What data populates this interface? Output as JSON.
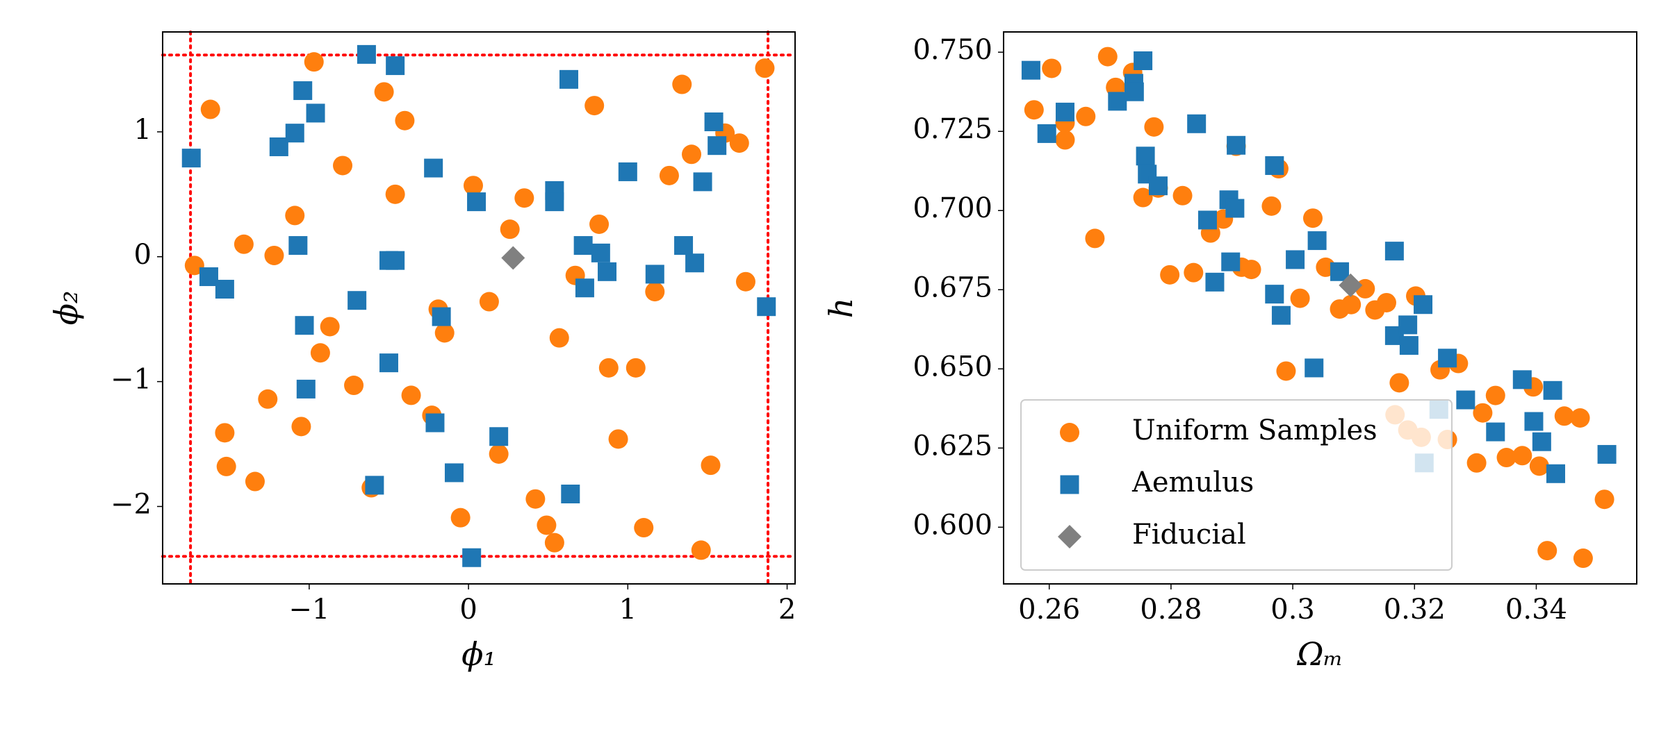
{
  "chart_data": [
    {
      "type": "scatter",
      "xlabel": "ϕ₁",
      "ylabel": "ϕ₂",
      "xlim": [
        -1.92,
        2.05
      ],
      "ylim": [
        -2.62,
        1.8
      ],
      "xticks": [
        {
          "value": -1,
          "label": "−1"
        },
        0,
        1,
        2
      ],
      "yticks": [
        {
          "value": -2,
          "label": "−2"
        },
        {
          "value": -1,
          "label": "−1"
        },
        0,
        1
      ],
      "vlines": [
        -1.745,
        1.88
      ],
      "hlines": [
        1.615,
        -2.4
      ],
      "line_color": "#ff0000",
      "series": [
        {
          "color": "#ff7f0e",
          "marker": "circle",
          "x": [
            -1.72,
            -1.62,
            -1.53,
            -1.52,
            -1.41,
            -1.34,
            -1.26,
            -1.22,
            -1.09,
            -1.05,
            -0.97,
            -0.93,
            -0.87,
            -0.79,
            -0.72,
            -0.61,
            -0.53,
            -0.46,
            -0.4,
            -0.36,
            -0.23,
            -0.19,
            -0.15,
            -0.05,
            0.03,
            0.13,
            0.19,
            0.26,
            0.35,
            0.42,
            0.49,
            0.54,
            0.57,
            0.67,
            0.79,
            0.82,
            0.88,
            0.94,
            1.05,
            1.1,
            1.17,
            1.26,
            1.34,
            1.4,
            1.46,
            1.52,
            1.61,
            1.7,
            1.74,
            1.86
          ],
          "y": [
            -0.07,
            1.18,
            -1.41,
            -1.68,
            0.1,
            -1.8,
            -1.14,
            0.01,
            0.33,
            -1.36,
            1.56,
            -0.77,
            -0.56,
            0.73,
            -1.03,
            -1.85,
            1.32,
            0.5,
            1.09,
            -1.11,
            -1.27,
            -0.42,
            -0.61,
            -2.09,
            0.57,
            -0.36,
            -1.58,
            0.22,
            0.47,
            -1.94,
            -2.15,
            -2.29,
            -0.65,
            -0.15,
            1.21,
            0.26,
            -0.89,
            -1.46,
            -0.89,
            -2.17,
            -0.28,
            0.65,
            1.38,
            0.82,
            -2.35,
            -1.67,
            0.99,
            0.91,
            -0.2,
            1.51
          ]
        },
        {
          "color": "#1f77b4",
          "marker": "square",
          "x": [
            -1.74,
            -1.63,
            -1.53,
            -1.19,
            -1.09,
            -1.07,
            -1.04,
            -1.03,
            -1.02,
            -0.96,
            -0.7,
            -0.64,
            -0.59,
            -0.5,
            -0.5,
            -0.46,
            -0.46,
            -0.22,
            -0.21,
            -0.17,
            -0.09,
            0.02,
            0.05,
            0.19,
            0.54,
            0.54,
            0.63,
            0.64,
            0.72,
            0.73,
            0.83,
            0.87,
            1.0,
            1.17,
            1.35,
            1.42,
            1.47,
            1.54,
            1.56,
            1.87
          ],
          "y": [
            0.79,
            -0.16,
            -0.26,
            0.88,
            0.99,
            0.09,
            1.33,
            -0.55,
            -1.06,
            1.15,
            -0.35,
            1.62,
            -1.83,
            -0.85,
            -0.03,
            1.53,
            -0.03,
            0.71,
            -1.33,
            -0.48,
            -1.73,
            -2.41,
            0.44,
            -1.44,
            0.53,
            0.44,
            1.42,
            -1.9,
            0.09,
            -0.25,
            0.03,
            -0.12,
            0.68,
            -0.14,
            0.09,
            -0.05,
            0.6,
            1.08,
            0.89,
            -0.4
          ]
        },
        {
          "color": "#808080",
          "marker": "diamond",
          "x": [
            0.28
          ],
          "y": [
            -0.01
          ]
        }
      ]
    },
    {
      "type": "scatter",
      "xlabel": "Ωₘ",
      "ylabel": "h",
      "xlim": [
        0.2525,
        0.3565
      ],
      "ylim": [
        0.5821,
        0.7564
      ],
      "xticks": [
        0.26,
        0.28,
        0.3,
        0.32,
        0.34
      ],
      "yticks": [
        {
          "value": 0.6,
          "label": "0.600"
        },
        0.625,
        {
          "value": 0.65,
          "label": "0.650"
        },
        0.675,
        {
          "value": 0.7,
          "label": "0.700"
        },
        0.725,
        {
          "value": 0.75,
          "label": "0.750"
        }
      ],
      "legend": "lower left",
      "series": [
        {
          "name": "Uniform Samples",
          "color": "#ff7f0e",
          "marker": "circle",
          "x": [
            0.2575,
            0.2604,
            0.2626,
            0.2626,
            0.266,
            0.2675,
            0.2696,
            0.2709,
            0.2737,
            0.2754,
            0.2772,
            0.2779,
            0.2798,
            0.2819,
            0.2837,
            0.2865,
            0.2886,
            0.2907,
            0.2916,
            0.2932,
            0.2965,
            0.2977,
            0.2989,
            0.3012,
            0.3033,
            0.3054,
            0.3077,
            0.3096,
            0.3119,
            0.3135,
            0.3154,
            0.3175,
            0.3168,
            0.3189,
            0.3202,
            0.3211,
            0.3242,
            0.3254,
            0.3272,
            0.3302,
            0.3312,
            0.3333,
            0.3351,
            0.3377,
            0.3395,
            0.3405,
            0.3418,
            0.3446,
            0.3472,
            0.3477,
            0.3512
          ],
          "y": [
            0.7318,
            0.7449,
            0.7277,
            0.7223,
            0.7297,
            0.6912,
            0.7486,
            0.7389,
            0.7436,
            0.7041,
            0.7264,
            0.7071,
            0.6797,
            0.7047,
            0.6804,
            0.6929,
            0.6973,
            0.7203,
            0.6821,
            0.6814,
            0.7014,
            0.7132,
            0.6493,
            0.6723,
            0.6976,
            0.6821,
            0.6689,
            0.6703,
            0.6753,
            0.6686,
            0.6709,
            0.6456,
            0.6355,
            0.6307,
            0.673,
            0.6284,
            0.6497,
            0.6277,
            0.6517,
            0.6203,
            0.6361,
            0.6416,
            0.622,
            0.6226,
            0.6443,
            0.6193,
            0.5926,
            0.6351,
            0.6345,
            0.5902,
            0.6088
          ]
        },
        {
          "name": "Aemulus",
          "color": "#1f77b4",
          "marker": "square",
          "x": [
            0.257,
            0.2596,
            0.2626,
            0.2712,
            0.2739,
            0.274,
            0.2754,
            0.2758,
            0.2761,
            0.2779,
            0.2842,
            0.286,
            0.2872,
            0.2895,
            0.2898,
            0.2905,
            0.2907,
            0.297,
            0.297,
            0.2981,
            0.3004,
            0.304,
            0.3035,
            0.3077,
            0.3167,
            0.3167,
            0.3189,
            0.3191,
            0.3214,
            0.3254,
            0.3284,
            0.3333,
            0.3377,
            0.3396,
            0.3409,
            0.3427,
            0.3432,
            0.3516,
            0.324,
            0.3216
          ],
          "y": [
            0.7443,
            0.7243,
            0.7311,
            0.7345,
            0.7402,
            0.7375,
            0.7473,
            0.7172,
            0.7115,
            0.7078,
            0.7274,
            0.697,
            0.6774,
            0.7034,
            0.6838,
            0.7007,
            0.7206,
            0.7142,
            0.6736,
            0.6669,
            0.6845,
            0.6905,
            0.6503,
            0.6807,
            0.6872,
            0.6605,
            0.6639,
            0.6574,
            0.6703,
            0.6534,
            0.6402,
            0.6301,
            0.6466,
            0.6334,
            0.627,
            0.6432,
            0.6169,
            0.623,
            0.6372,
            0.6203
          ]
        },
        {
          "name": "Fiducial",
          "color": "#808080",
          "marker": "diamond",
          "x": [
            0.3095
          ],
          "y": [
            0.6764
          ]
        }
      ]
    }
  ]
}
